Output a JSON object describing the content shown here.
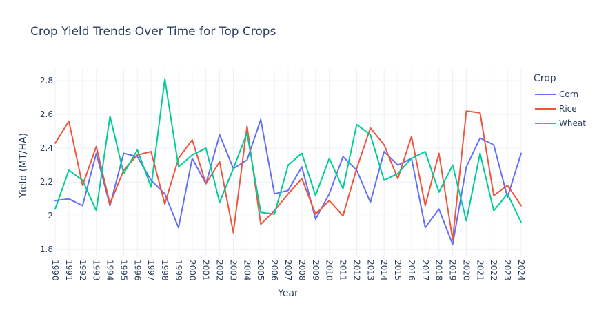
{
  "chart_data": {
    "type": "line",
    "title": "Crop Yield Trends Over Time for Top Crops",
    "xlabel": "Year",
    "ylabel": "Yield (MT/HA)",
    "ylim": [
      1.76,
      2.87
    ],
    "yticks": [
      "1.8",
      "2",
      "2.2",
      "2.4",
      "2.6",
      "2.8"
    ],
    "ytick_values": [
      1.8,
      2.0,
      2.2,
      2.4,
      2.6,
      2.8
    ],
    "grid": true,
    "legend_title": "Crop",
    "legend_position": "right",
    "x": [
      1990,
      1991,
      1992,
      1993,
      1994,
      1995,
      1996,
      1997,
      1998,
      1999,
      2000,
      2001,
      2002,
      2003,
      2004,
      2005,
      2006,
      2007,
      2008,
      2009,
      2010,
      2011,
      2012,
      2013,
      2014,
      2015,
      2016,
      2017,
      2018,
      2019,
      2020,
      2021,
      2022,
      2023,
      2024
    ],
    "series": [
      {
        "name": "Corn",
        "color": "#636efa",
        "values": [
          2.09,
          2.1,
          2.06,
          2.37,
          2.06,
          2.37,
          2.35,
          2.21,
          2.13,
          1.93,
          2.34,
          2.19,
          2.48,
          2.28,
          2.33,
          2.57,
          2.13,
          2.15,
          2.29,
          1.98,
          2.13,
          2.35,
          2.27,
          2.08,
          2.38,
          2.3,
          2.34,
          1.93,
          2.04,
          1.83,
          2.29,
          2.46,
          2.42,
          2.11,
          2.37
        ]
      },
      {
        "name": "Rice",
        "color": "#ef553b",
        "values": [
          2.43,
          2.56,
          2.18,
          2.41,
          2.07,
          2.27,
          2.36,
          2.38,
          2.07,
          2.34,
          2.45,
          2.19,
          2.32,
          1.9,
          2.53,
          1.95,
          2.03,
          2.13,
          2.22,
          2.01,
          2.09,
          2.0,
          2.28,
          2.52,
          2.42,
          2.22,
          2.47,
          2.06,
          2.37,
          1.86,
          2.62,
          2.61,
          2.12,
          2.18,
          2.06
        ]
      },
      {
        "name": "Wheat",
        "color": "#00cc96",
        "values": [
          2.04,
          2.27,
          2.21,
          2.03,
          2.59,
          2.25,
          2.39,
          2.17,
          2.81,
          2.29,
          2.36,
          2.4,
          2.08,
          2.28,
          2.49,
          2.02,
          2.01,
          2.3,
          2.37,
          2.12,
          2.34,
          2.16,
          2.54,
          2.48,
          2.21,
          2.25,
          2.34,
          2.38,
          2.14,
          2.3,
          1.97,
          2.37,
          2.03,
          2.13,
          1.96
        ]
      }
    ]
  }
}
